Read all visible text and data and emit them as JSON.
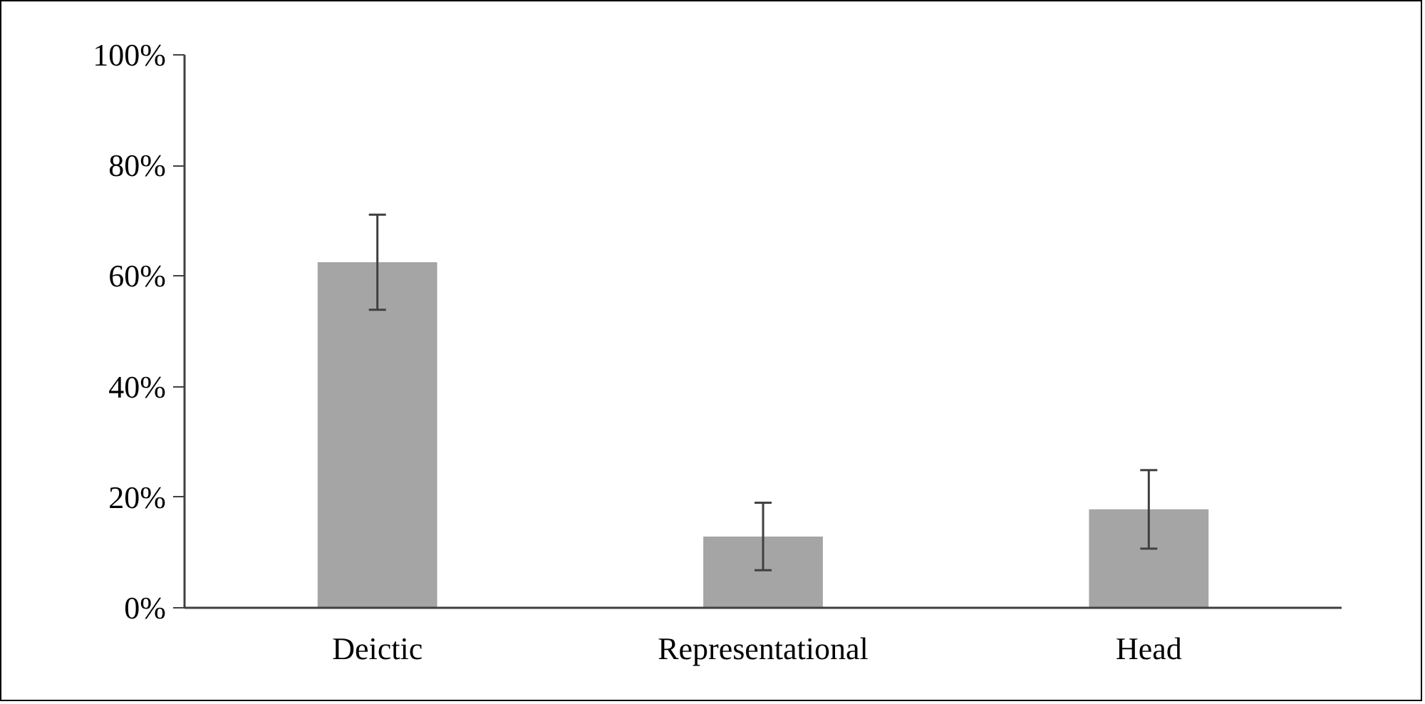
{
  "chart_data": {
    "type": "bar",
    "categories": [
      "Deictic",
      "Representational",
      "Head"
    ],
    "values": [
      62.5,
      12.9,
      17.8
    ],
    "errors": [
      8.6,
      6.1,
      7.1
    ],
    "color": "#a5a5a5",
    "ylim": [
      0,
      100
    ],
    "yticks": [
      {
        "value": 0,
        "label": "0%"
      },
      {
        "value": 20,
        "label": "20%"
      },
      {
        "value": 40,
        "label": "40%"
      },
      {
        "value": 60,
        "label": "60%"
      },
      {
        "value": 80,
        "label": "80%"
      },
      {
        "value": 100,
        "label": "100%"
      }
    ],
    "grid": false
  }
}
